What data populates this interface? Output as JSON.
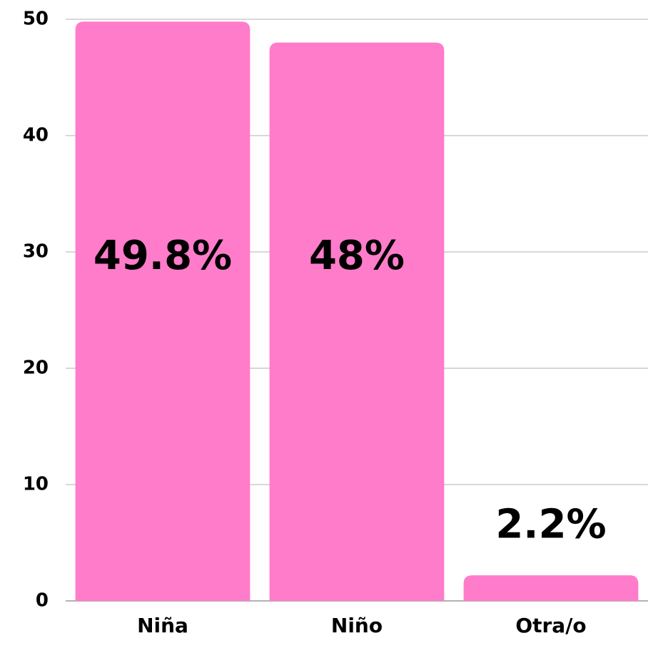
{
  "chart_data": {
    "type": "bar",
    "categories": [
      "Niña",
      "Niño",
      "Otra/o"
    ],
    "values": [
      49.8,
      48,
      2.2
    ],
    "value_labels": [
      "49.8%",
      "48%",
      "2.2%"
    ],
    "color": "#ff7ccb",
    "ylim": [
      0,
      50
    ],
    "yticks": [
      0,
      10,
      20,
      30,
      40,
      50
    ],
    "grid": true
  }
}
